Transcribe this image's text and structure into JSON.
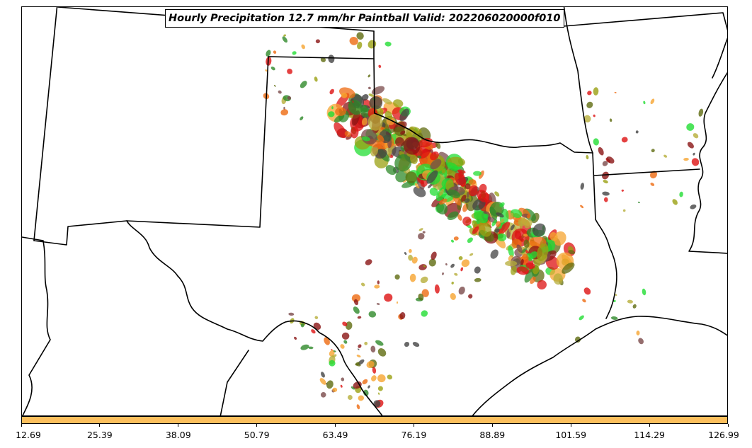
{
  "map": {
    "title": "Hourly Precipitation 12.7 mm/hr Paintball Valid: 202206020000f010",
    "region": "Texas and the southern Plains",
    "border_color": "#000000",
    "member_colors": [
      "#dd1111",
      "#ee6a10",
      "#f6a430",
      "#8a1414",
      "#5f6b10",
      "#9aa012",
      "#b7ae3a",
      "#2f8a2a",
      "#22dd33",
      "#444444",
      "#7a4a4a"
    ]
  },
  "colorbar": {
    "color": "#fcbf5d",
    "ticks": [
      "12.69",
      "25.39",
      "38.09",
      "50.79",
      "63.49",
      "76.19",
      "88.89",
      "101.59",
      "114.29",
      "126.99"
    ]
  }
}
